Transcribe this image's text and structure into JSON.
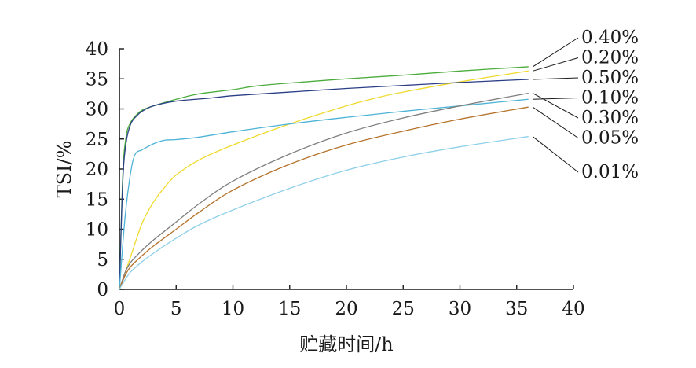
{
  "chart_data": {
    "type": "line",
    "xlabel": "贮藏时间/h",
    "ylabel": "TSI/%",
    "xlim": [
      0,
      40
    ],
    "ylim": [
      0,
      40
    ],
    "xticks": [
      0,
      5,
      10,
      15,
      20,
      25,
      30,
      35,
      40
    ],
    "yticks": [
      0,
      5,
      10,
      15,
      20,
      25,
      30,
      35,
      40
    ],
    "grid": false,
    "legend": "right, labels with leader lines",
    "series": [
      {
        "name": "0.40%",
        "color": "#4cad3c",
        "x": [
          0,
          0.3,
          0.6,
          1,
          1.5,
          2,
          3,
          5,
          7,
          10,
          12,
          15,
          20,
          25,
          30,
          36
        ],
        "y": [
          0,
          19,
          25.5,
          27.8,
          29,
          29.8,
          30.5,
          31.6,
          32.5,
          33.2,
          33.8,
          34.3,
          35,
          35.6,
          36.3,
          37
        ]
      },
      {
        "name": "0.20%",
        "color": "#f0da2e",
        "x": [
          0,
          1,
          2,
          3,
          4,
          5,
          7,
          10,
          15,
          20,
          23,
          25,
          30,
          36
        ],
        "y": [
          0,
          5.5,
          11,
          14.5,
          17,
          19,
          21.5,
          24,
          27.5,
          30.5,
          32,
          32.8,
          34.5,
          36.3
        ]
      },
      {
        "name": "0.50%",
        "color": "#2b3f86",
        "x": [
          0,
          0.3,
          0.6,
          1,
          1.5,
          2,
          3,
          5,
          8,
          10,
          15,
          20,
          25,
          30,
          36
        ],
        "y": [
          0,
          18,
          24.5,
          27.5,
          28.8,
          29.6,
          30.5,
          31.3,
          31.8,
          32.2,
          32.8,
          33.4,
          33.9,
          34.4,
          34.9
        ]
      },
      {
        "name": "0.10%",
        "color": "#4db3d6",
        "x": [
          0,
          0.5,
          1,
          1.4,
          2,
          3,
          4,
          5,
          7,
          10,
          15,
          20,
          25,
          30,
          36
        ],
        "y": [
          0,
          12,
          19.5,
          22.5,
          23.2,
          24.2,
          24.8,
          24.9,
          25.3,
          26.2,
          27.5,
          28.6,
          29.6,
          30.5,
          31.6
        ]
      },
      {
        "name": "0.30%",
        "color": "#7f7f7f",
        "x": [
          0,
          0.5,
          1,
          2,
          3,
          5,
          7,
          10,
          15,
          20,
          25,
          30,
          36
        ],
        "y": [
          0,
          2.8,
          4.5,
          6.5,
          8.2,
          11.2,
          14.2,
          18,
          22.5,
          26,
          28.5,
          30.5,
          32.6
        ]
      },
      {
        "name": "0.05%",
        "color": "#b5722a",
        "x": [
          0,
          0.5,
          1,
          2,
          3,
          5,
          7,
          10,
          15,
          20,
          25,
          30,
          36
        ],
        "y": [
          0,
          2.3,
          3.8,
          5.6,
          7.2,
          10,
          12.8,
          16.5,
          20.8,
          24,
          26.3,
          28.3,
          30.3
        ]
      },
      {
        "name": "0.01%",
        "color": "#8fd0ea",
        "x": [
          0,
          0.5,
          1,
          2,
          3,
          5,
          7,
          10,
          15,
          20,
          25,
          30,
          36
        ],
        "y": [
          0,
          1.6,
          2.9,
          4.6,
          6,
          8.5,
          10.7,
          13.2,
          16.8,
          19.8,
          22,
          23.7,
          25.4
        ]
      }
    ]
  }
}
